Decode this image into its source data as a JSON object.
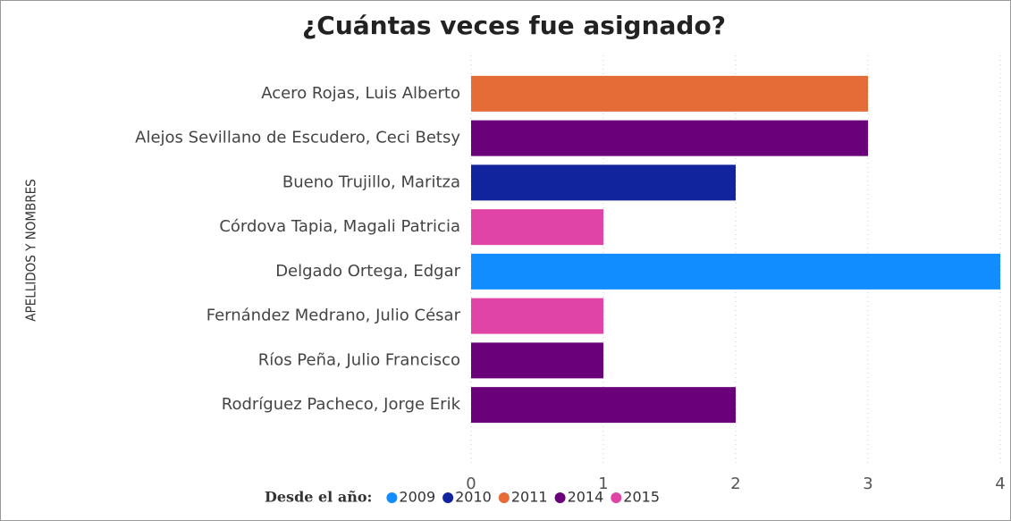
{
  "chart_data": {
    "type": "barh",
    "title": "¿Cuántas veces fue asignado?",
    "y_label": "APELLIDOS Y NOMBRES",
    "categories": [
      "Acero Rojas, Luis Alberto",
      "Alejos Sevillano de Escudero, Ceci Betsy",
      "Bueno Trujillo, Maritza",
      "Córdova Tapia, Magali Patricia",
      "Delgado Ortega, Edgar",
      "Fernández Medrano, Julio César",
      "Ríos Peña, Julio Francisco",
      "Rodríguez Pacheco, Jorge Erik"
    ],
    "series": [
      {
        "name": "2009",
        "color": "#118DFF",
        "values": [
          null,
          null,
          null,
          null,
          4,
          null,
          null,
          null
        ]
      },
      {
        "name": "2010",
        "color": "#12239E",
        "values": [
          null,
          null,
          2,
          null,
          null,
          null,
          null,
          null
        ]
      },
      {
        "name": "2011",
        "color": "#E66C37",
        "values": [
          3,
          null,
          null,
          null,
          null,
          null,
          null,
          null
        ]
      },
      {
        "name": "2014",
        "color": "#6B007B",
        "values": [
          null,
          3,
          null,
          null,
          null,
          null,
          1,
          2
        ]
      },
      {
        "name": "2015",
        "color": "#E044A7",
        "values": [
          null,
          null,
          null,
          1,
          null,
          1,
          null,
          null
        ]
      }
    ],
    "legend_title": "Desde el año:",
    "xlim": [
      0,
      4
    ],
    "xticks": [
      0,
      1,
      2,
      3,
      4
    ],
    "grid": true
  }
}
